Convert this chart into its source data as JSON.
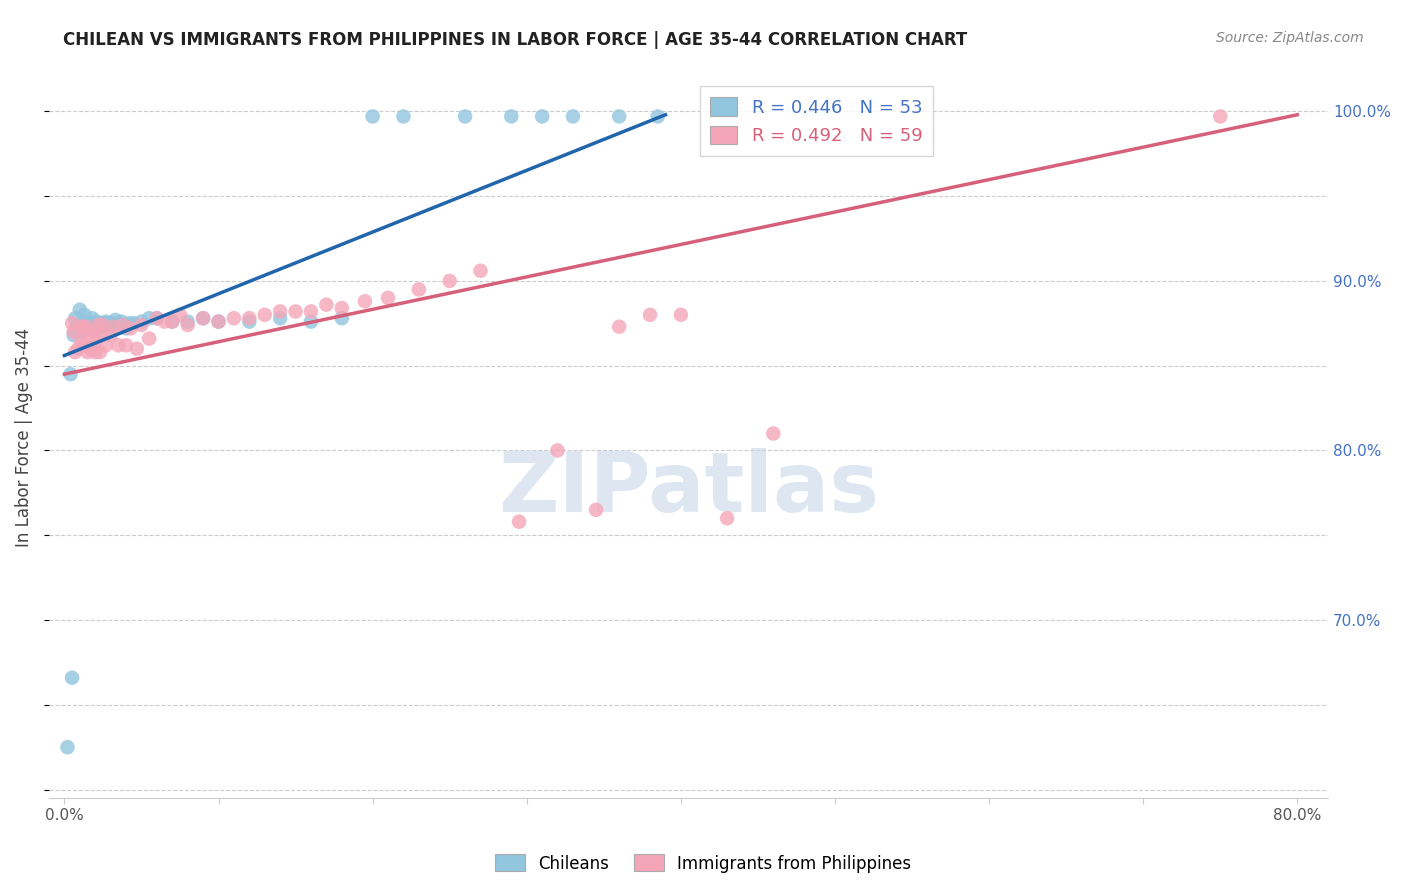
{
  "title": "CHILEAN VS IMMIGRANTS FROM PHILIPPINES IN LABOR FORCE | AGE 35-44 CORRELATION CHART",
  "source": "Source: ZipAtlas.com",
  "ylabel": "In Labor Force | Age 35-44",
  "blue_color": "#92c5de",
  "pink_color": "#f4a6b8",
  "blue_line_color": "#2166ac",
  "pink_line_color": "#d6607a",
  "watermark_text": "ZIPatlas",
  "watermark_color": "#c8d8e8",
  "grid_color": "#cccccc",
  "background_color": "#ffffff",
  "legend_line1": "R = 0.446   N = 53",
  "legend_line2": "R = 0.492   N = 59",
  "legend_text_color1": "#4472c4",
  "legend_text_color2": "#d6607a",
  "right_axis_color": "#4472c4",
  "blue_x": [
    0.002,
    0.004,
    0.005,
    0.006,
    0.007,
    0.008,
    0.009,
    0.01,
    0.011,
    0.012,
    0.013,
    0.014,
    0.015,
    0.016,
    0.017,
    0.018,
    0.019,
    0.02,
    0.021,
    0.022,
    0.023,
    0.024,
    0.025,
    0.026,
    0.027,
    0.028,
    0.03,
    0.031,
    0.033,
    0.035,
    0.037,
    0.04,
    0.042,
    0.045,
    0.05,
    0.055,
    0.06,
    0.07,
    0.08,
    0.09,
    0.1,
    0.12,
    0.14,
    0.16,
    0.18,
    0.2,
    0.22,
    0.26,
    0.29,
    0.31,
    0.33,
    0.36,
    0.385
  ],
  "blue_y": [
    0.625,
    0.845,
    0.666,
    0.868,
    0.878,
    0.873,
    0.873,
    0.883,
    0.87,
    0.876,
    0.88,
    0.873,
    0.872,
    0.875,
    0.873,
    0.878,
    0.875,
    0.875,
    0.876,
    0.875,
    0.875,
    0.873,
    0.873,
    0.875,
    0.876,
    0.875,
    0.873,
    0.875,
    0.877,
    0.875,
    0.876,
    0.872,
    0.875,
    0.875,
    0.876,
    0.878,
    0.878,
    0.876,
    0.876,
    0.878,
    0.876,
    0.876,
    0.878,
    0.876,
    0.878,
    0.997,
    0.997,
    0.997,
    0.997,
    0.997,
    0.997,
    0.997,
    0.997
  ],
  "pink_x": [
    0.005,
    0.006,
    0.007,
    0.009,
    0.01,
    0.011,
    0.012,
    0.013,
    0.014,
    0.015,
    0.016,
    0.017,
    0.018,
    0.019,
    0.02,
    0.021,
    0.022,
    0.023,
    0.024,
    0.025,
    0.027,
    0.03,
    0.032,
    0.035,
    0.038,
    0.04,
    0.043,
    0.047,
    0.05,
    0.055,
    0.06,
    0.065,
    0.07,
    0.075,
    0.08,
    0.09,
    0.1,
    0.11,
    0.12,
    0.13,
    0.14,
    0.15,
    0.16,
    0.17,
    0.18,
    0.195,
    0.21,
    0.23,
    0.25,
    0.27,
    0.295,
    0.32,
    0.345,
    0.36,
    0.38,
    0.4,
    0.43,
    0.46,
    0.75
  ],
  "pink_y": [
    0.875,
    0.87,
    0.858,
    0.86,
    0.873,
    0.865,
    0.873,
    0.862,
    0.873,
    0.858,
    0.87,
    0.86,
    0.862,
    0.87,
    0.858,
    0.866,
    0.874,
    0.858,
    0.868,
    0.874,
    0.862,
    0.868,
    0.873,
    0.862,
    0.874,
    0.862,
    0.872,
    0.86,
    0.874,
    0.866,
    0.878,
    0.876,
    0.876,
    0.88,
    0.874,
    0.878,
    0.876,
    0.878,
    0.878,
    0.88,
    0.882,
    0.882,
    0.882,
    0.886,
    0.884,
    0.888,
    0.89,
    0.895,
    0.9,
    0.906,
    0.758,
    0.8,
    0.765,
    0.873,
    0.88,
    0.88,
    0.76,
    0.81,
    0.997
  ],
  "xlim": [
    -0.01,
    0.82
  ],
  "ylim": [
    0.595,
    1.02
  ],
  "xtick_positions": [
    0.0,
    0.1,
    0.2,
    0.3,
    0.4,
    0.5,
    0.6,
    0.7,
    0.8
  ],
  "xtick_labels": [
    "0.0%",
    "",
    "",
    "",
    "",
    "",
    "",
    "",
    "80.0%"
  ],
  "ytick_positions": [
    0.6,
    0.65,
    0.7,
    0.75,
    0.8,
    0.85,
    0.9,
    0.95,
    1.0
  ],
  "right_ytick_positions": [
    0.7,
    0.8,
    0.9,
    1.0
  ],
  "right_ytick_labels": [
    "70.0%",
    "80.0%",
    "90.0%",
    "100.0%"
  ]
}
